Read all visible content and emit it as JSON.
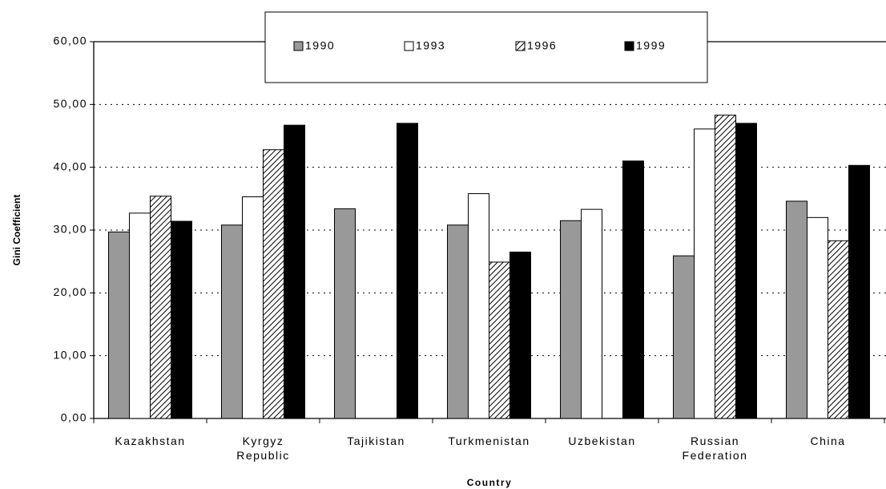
{
  "chart_data": {
    "type": "bar",
    "x_label": "Country",
    "y_label": "Gini Coefficient",
    "categories": [
      "Kazakhstan",
      "Kyrgyz\nRepublic",
      "Tajikistan",
      "Turkmenistan",
      "Uzbekistan",
      "Russian\nFederation",
      "China"
    ],
    "series": [
      {
        "name": "1990",
        "color": "#999999",
        "values": [
          29.7,
          30.8,
          33.4,
          30.8,
          31.5,
          25.9,
          34.6
        ]
      },
      {
        "name": "1993",
        "color": "#ffffff",
        "values": [
          32.7,
          35.3,
          null,
          35.8,
          33.3,
          46.1,
          32.0
        ]
      },
      {
        "name": "1996",
        "color": "#000000",
        "pattern": "diagonal",
        "values": [
          35.4,
          42.8,
          null,
          24.9,
          null,
          48.3,
          28.3
        ]
      },
      {
        "name": "1999",
        "color": "#000000",
        "values": [
          31.4,
          46.7,
          47.0,
          26.5,
          41.0,
          47.0,
          40.3
        ]
      }
    ],
    "ylim": [
      0,
      60
    ],
    "yticks": [
      {
        "value": 0,
        "label": "0,00"
      },
      {
        "value": 10,
        "label": "10,00"
      },
      {
        "value": 20,
        "label": "20,00"
      },
      {
        "value": 30,
        "label": "30,00"
      },
      {
        "value": 40,
        "label": "40,00"
      },
      {
        "value": 50,
        "label": "50,00"
      },
      {
        "value": 60,
        "label": "60,00"
      }
    ],
    "grid": true,
    "legend": "top"
  }
}
